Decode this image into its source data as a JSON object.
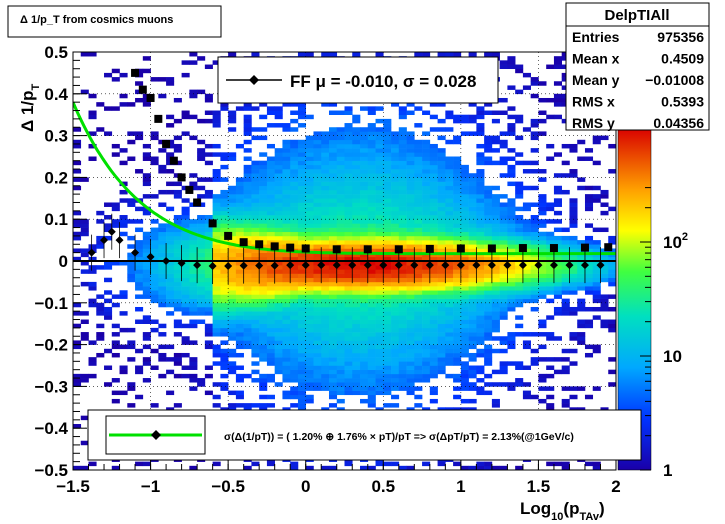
{
  "title": "Δ 1/p_T from cosmics muons",
  "stats": {
    "name": "DelpTIAll",
    "rows": [
      {
        "label": "Entries",
        "value": "975356"
      },
      {
        "label": "Mean x",
        "value": "0.4509"
      },
      {
        "label": "Mean y",
        "value": "−0.01008"
      },
      {
        "label": "RMS x",
        "value": "0.5393"
      },
      {
        "label": "RMS y",
        "value": "0.04356"
      }
    ]
  },
  "legend_top": {
    "text": "FF μ = -0.010, σ =   0.028"
  },
  "legend_bottom": {
    "text": "σ(Δ(1/pT)) = ( 1.20% ⊕  1.76% × pT)/pT => σ(ΔpT/pT) =  2.13%(@1GeV/c)"
  },
  "colors": {
    "fit_curve": "#00e000",
    "markers": "#000000",
    "hot": "#d80000",
    "cold": "#1a00a8"
  },
  "chart_data": {
    "type": "heatmap",
    "xlabel": "Log10(pTAv)",
    "ylabel": "Δ 1/pT",
    "xlim": [
      -1.5,
      2.0
    ],
    "ylim": [
      -0.5,
      0.5
    ],
    "xticks": [
      "−1.5",
      "−1",
      "−0.5",
      "0",
      "0.5",
      "1",
      "1.5",
      "2"
    ],
    "yticks": [
      "−0.5",
      "−0.4",
      "−0.3",
      "−0.2",
      "−0.1",
      "0",
      "0.1",
      "0.2",
      "0.3",
      "0.4",
      "0.5"
    ],
    "grid": true,
    "colorscale": {
      "scale": "log",
      "range": [
        1,
        1000
      ],
      "labels": [
        "1",
        "10",
        "10²"
      ]
    },
    "series": [
      {
        "name": "FF",
        "kind": "mean-markers",
        "x": [
          -1.38,
          -1.3,
          -1.25,
          -1.2,
          -1.1,
          -1.0,
          -0.9,
          -0.8,
          -0.7,
          -0.6,
          -0.5,
          -0.4,
          -0.3,
          -0.2,
          -0.1,
          0,
          0.1,
          0.2,
          0.3,
          0.4,
          0.5,
          0.6,
          0.7,
          0.8,
          0.9,
          1.0,
          1.1,
          1.2,
          1.3,
          1.4,
          1.5,
          1.6,
          1.7,
          1.8,
          1.9
        ],
        "y": [
          0.02,
          0.05,
          0.07,
          0.05,
          0.02,
          0.01,
          0.0,
          -0.005,
          -0.01,
          -0.012,
          -0.012,
          -0.011,
          -0.011,
          -0.011,
          -0.01,
          -0.01,
          -0.01,
          -0.01,
          -0.01,
          -0.01,
          -0.01,
          -0.01,
          -0.01,
          -0.01,
          -0.01,
          -0.01,
          -0.01,
          -0.01,
          -0.01,
          -0.01,
          -0.01,
          -0.01,
          -0.01,
          -0.01,
          -0.01
        ]
      },
      {
        "name": "sigma",
        "kind": "rms-markers",
        "x": [
          -1.1,
          -1.05,
          -1.0,
          -0.95,
          -0.9,
          -0.85,
          -0.8,
          -0.75,
          -0.7,
          -0.6,
          -0.5,
          -0.4,
          -0.3,
          -0.2,
          -0.1,
          0,
          0.2,
          0.4,
          0.6,
          0.8,
          1.0,
          1.2,
          1.4,
          1.6,
          1.8,
          1.95
        ],
        "y": [
          0.45,
          0.41,
          0.39,
          0.34,
          0.28,
          0.24,
          0.2,
          0.17,
          0.14,
          0.09,
          0.06,
          0.045,
          0.04,
          0.035,
          0.032,
          0.03,
          0.028,
          0.028,
          0.028,
          0.029,
          0.03,
          0.03,
          0.031,
          0.031,
          0.032,
          0.033
        ]
      },
      {
        "name": "fit",
        "kind": "resolution-curve",
        "a": 0.012,
        "b": 0.0176
      }
    ],
    "reference_line_y": 0
  }
}
